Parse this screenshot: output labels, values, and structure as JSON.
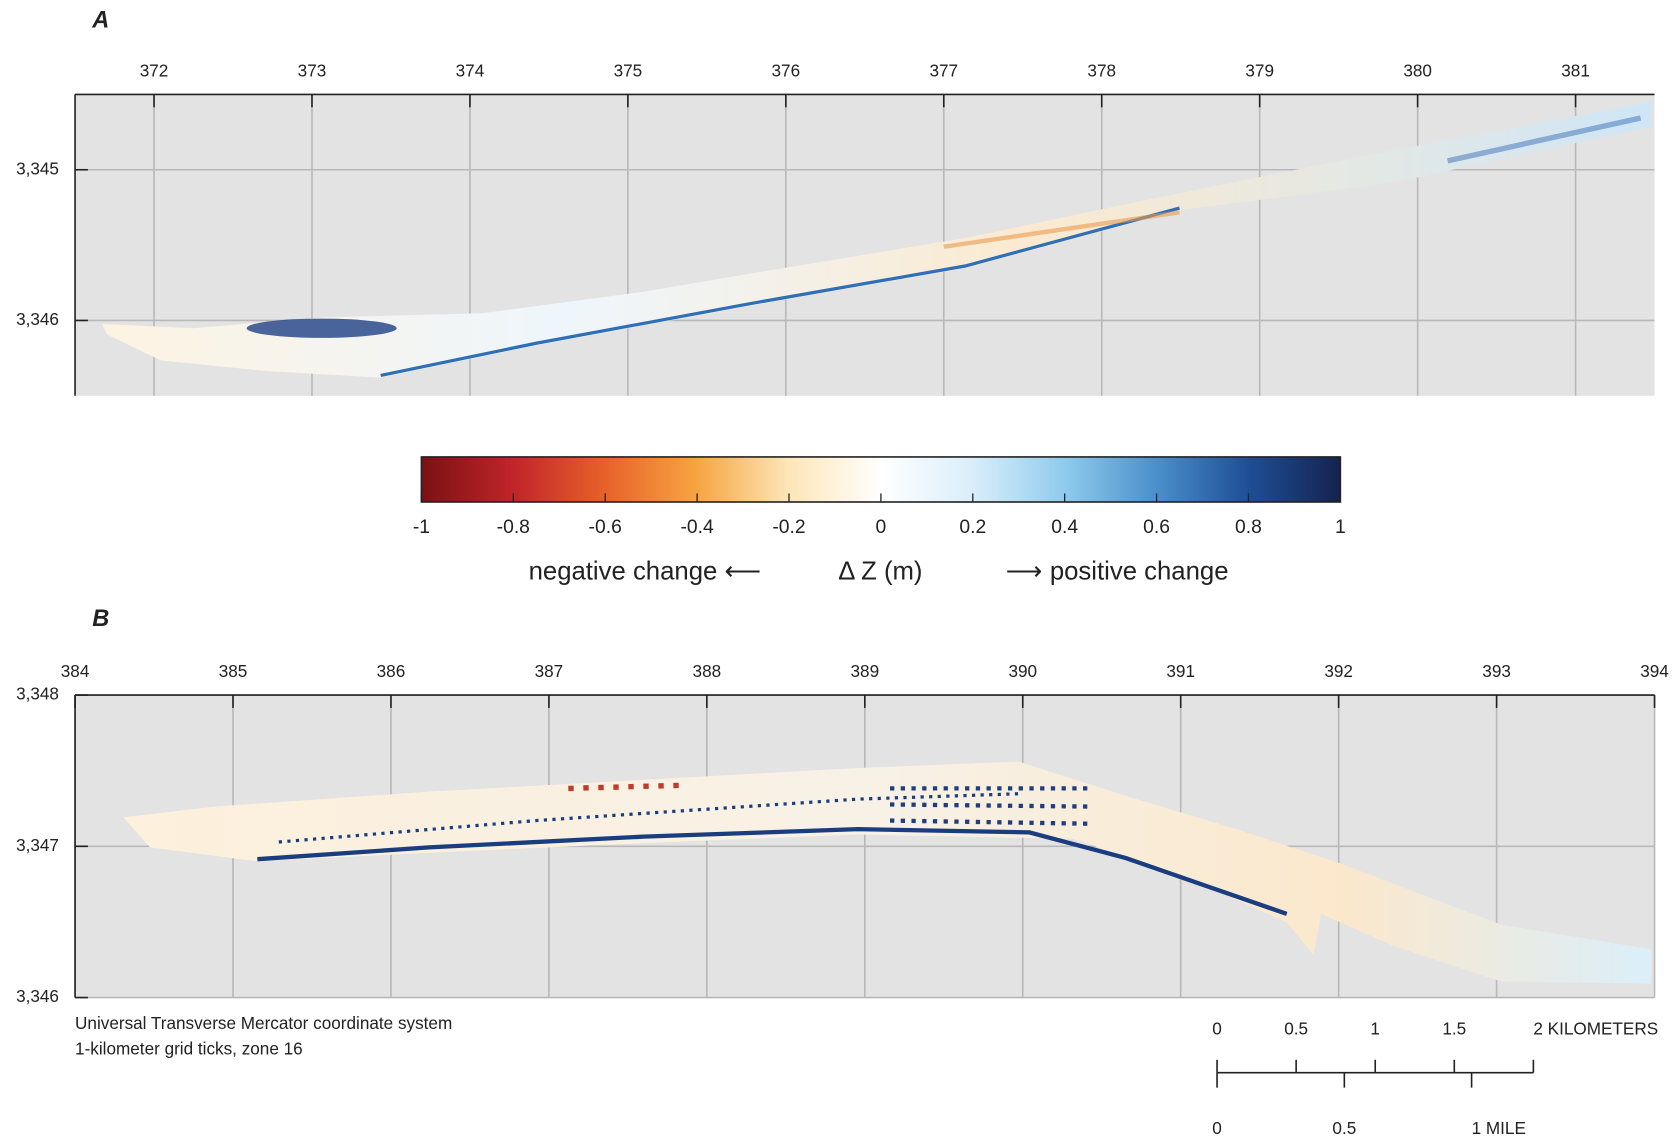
{
  "panels": [
    {
      "label": "A",
      "xlim": [
        371.5,
        381.5
      ],
      "x_ticks": [
        372,
        373,
        374,
        375,
        376,
        377,
        378,
        379,
        380,
        381
      ],
      "ylim": [
        3346.5,
        3344.5
      ],
      "y_ticks": [
        {
          "value": 3345,
          "label": "3,345"
        },
        {
          "value": 3346,
          "label": "3,346"
        }
      ]
    },
    {
      "label": "B",
      "xlim": [
        384,
        394
      ],
      "x_ticks": [
        384,
        385,
        386,
        387,
        388,
        389,
        390,
        391,
        392,
        393,
        394
      ],
      "ylim": [
        3346,
        3348
      ],
      "y_ticks": [
        {
          "value": 3348,
          "label": "3,348"
        },
        {
          "value": 3347,
          "label": "3,347"
        },
        {
          "value": 3346,
          "label": "3,346"
        }
      ]
    }
  ],
  "colorbar": {
    "range": [
      -1,
      1
    ],
    "ticks": [
      -1,
      -0.8,
      -0.6,
      -0.4,
      -0.2,
      0,
      0.2,
      0.4,
      0.6,
      0.8,
      1
    ],
    "colors": [
      "#7a1114",
      "#c0252a",
      "#e8612a",
      "#f7a541",
      "#fde6b8",
      "#ffffff",
      "#d9eefa",
      "#8fcbed",
      "#4a8fcb",
      "#1f4e96",
      "#14234f"
    ],
    "negative_label": "negative change ⟵",
    "axis_label": "Δ Z (m)",
    "positive_label": "⟶ positive change"
  },
  "coordinate_note": [
    "Universal Transverse Mercator coordinate system",
    "1-kilometer grid ticks, zone 16"
  ],
  "scale_bar": {
    "km_ticks": [
      0,
      0.5,
      1,
      1.5,
      {
        "value": 2,
        "label": "2 KILOMETERS"
      }
    ],
    "mile_ticks": [
      0,
      0.5,
      {
        "value": 1,
        "label": "1 MILE"
      }
    ]
  }
}
